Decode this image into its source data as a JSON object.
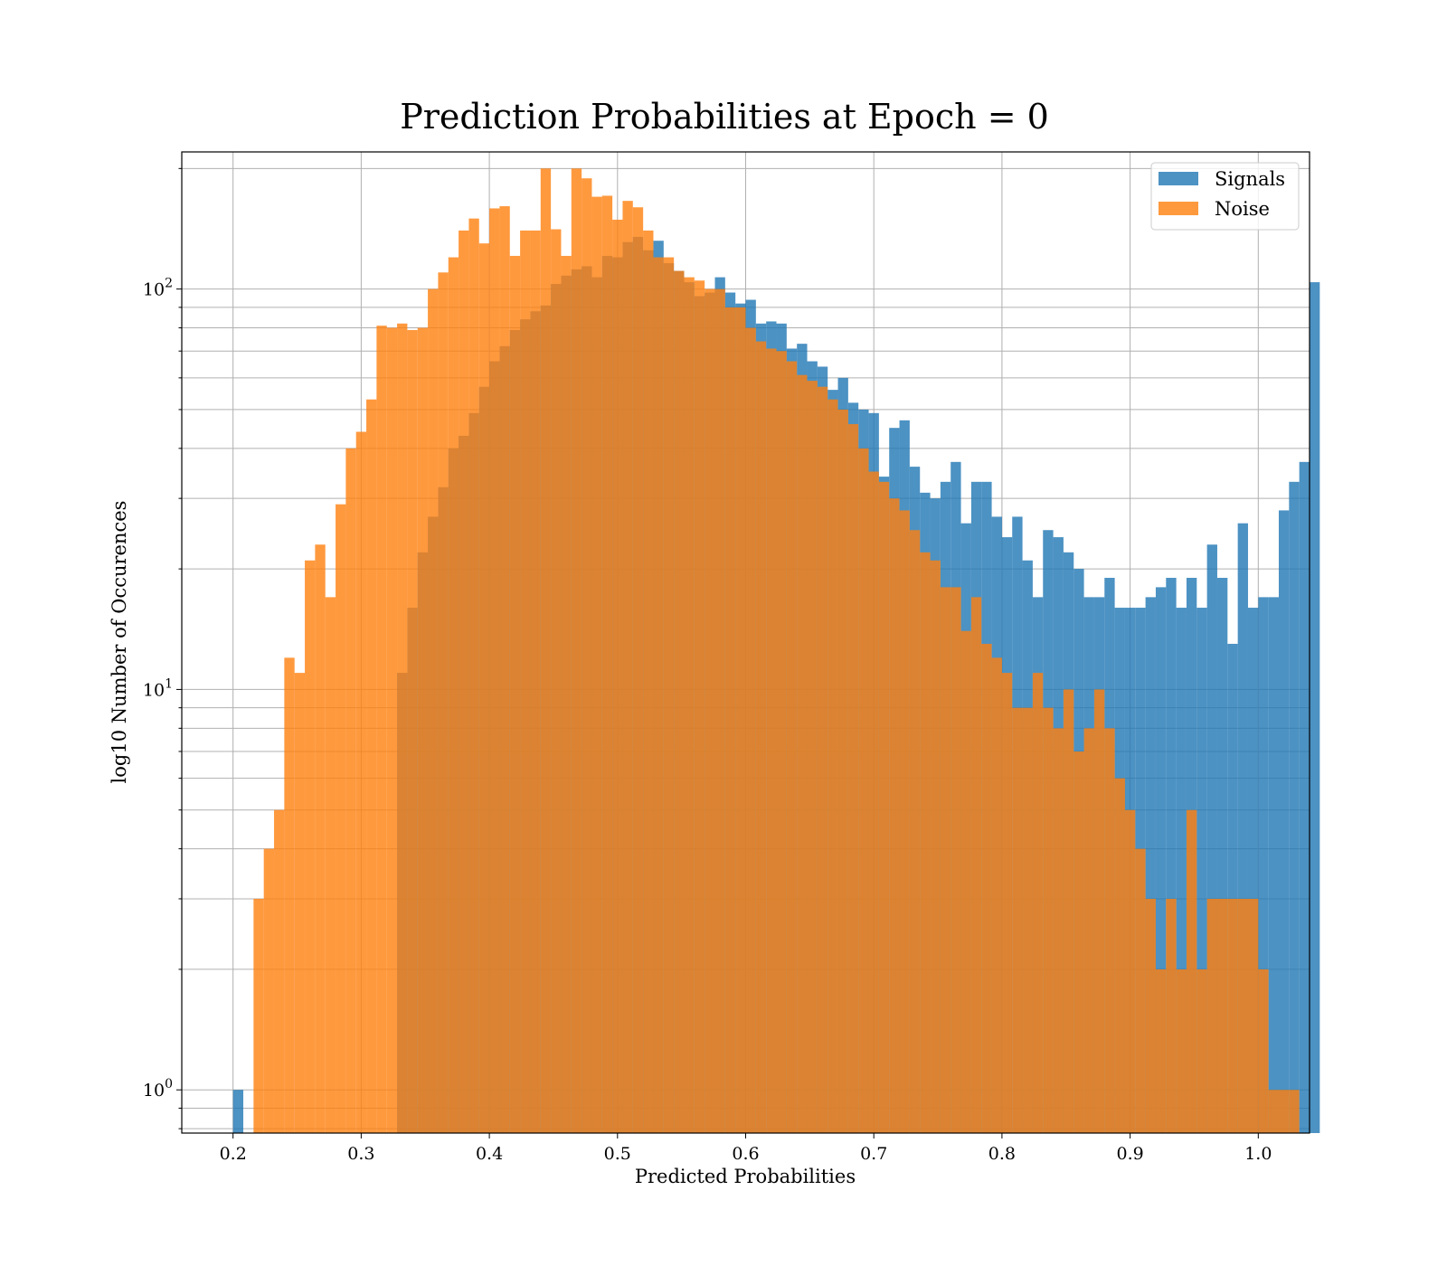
{
  "chart_data": {
    "type": "bar",
    "title": "Prediction Probabilities at Epoch = 0",
    "xlabel": "Predicted Probabilities",
    "ylabel": "log10 Number of Occurences",
    "xlim": [
      0.16,
      1.04
    ],
    "ylim": [
      0.78,
      220
    ],
    "yscale": "log",
    "grid": true,
    "legend_position": "top-right",
    "x_ticks": [
      0.2,
      0.3,
      0.4,
      0.5,
      0.6,
      0.7,
      0.8,
      0.9,
      1.0
    ],
    "x_tick_labels": [
      "0.2",
      "0.3",
      "0.4",
      "0.5",
      "0.6",
      "0.7",
      "0.8",
      "0.9",
      "1.0"
    ],
    "y_ticks": [
      {
        "value": 1,
        "base": "10",
        "exp": "0"
      },
      {
        "value": 10,
        "base": "10",
        "exp": "1"
      },
      {
        "value": 100,
        "base": "10",
        "exp": "2"
      }
    ],
    "bin_start": 0.2,
    "bin_width": 0.008,
    "series": [
      {
        "name": "Signals",
        "color": "#1f77b4",
        "opacity": 0.8,
        "values": [
          1,
          0,
          0,
          0,
          0,
          0,
          0,
          0,
          0,
          0,
          0,
          0,
          0,
          0,
          0,
          0,
          11,
          16,
          22,
          27,
          32,
          40,
          43,
          49,
          57,
          66,
          72,
          79,
          84,
          88,
          91,
          103,
          108,
          112,
          114,
          107,
          121,
          120,
          131,
          135,
          125,
          132,
          116,
          111,
          104,
          96,
          98,
          107,
          98,
          92,
          94,
          82,
          83,
          82,
          71,
          73,
          66,
          64,
          56,
          60,
          52,
          50,
          49,
          34,
          45,
          47,
          36,
          31,
          30,
          33,
          37,
          26,
          33,
          33,
          27,
          24,
          27,
          21,
          17,
          25,
          24,
          22,
          20,
          17,
          17,
          19,
          16,
          16,
          16,
          17,
          18,
          19,
          16,
          19,
          16,
          23,
          19,
          13,
          26,
          16,
          17,
          17,
          28,
          33,
          37,
          104
        ],
        "start_index": 0
      },
      {
        "name": "Noise",
        "color": "#ff7f0e",
        "opacity": 0.8,
        "values": [
          0,
          3,
          4,
          5,
          12,
          11,
          21,
          23,
          17,
          29,
          40,
          44,
          53,
          81,
          80,
          82,
          79,
          80,
          100,
          110,
          120,
          140,
          150,
          130,
          159,
          161,
          121,
          140,
          140,
          200,
          141,
          121,
          200,
          189,
          170,
          171,
          149,
          166,
          160,
          140,
          120,
          120,
          111,
          107,
          105,
          100,
          100,
          90,
          90,
          80,
          74,
          71,
          70,
          66,
          61,
          59,
          57,
          53,
          50,
          46,
          40,
          35,
          33,
          30,
          28,
          25,
          22,
          21,
          18,
          18,
          14,
          17,
          13,
          12,
          11,
          9,
          9,
          11,
          9,
          8,
          10,
          7,
          8,
          10,
          8,
          6,
          5,
          4,
          3,
          2,
          3,
          2,
          5,
          2,
          3,
          3,
          3,
          3,
          3,
          2,
          1,
          1,
          1
        ],
        "start_index": 1
      }
    ]
  }
}
